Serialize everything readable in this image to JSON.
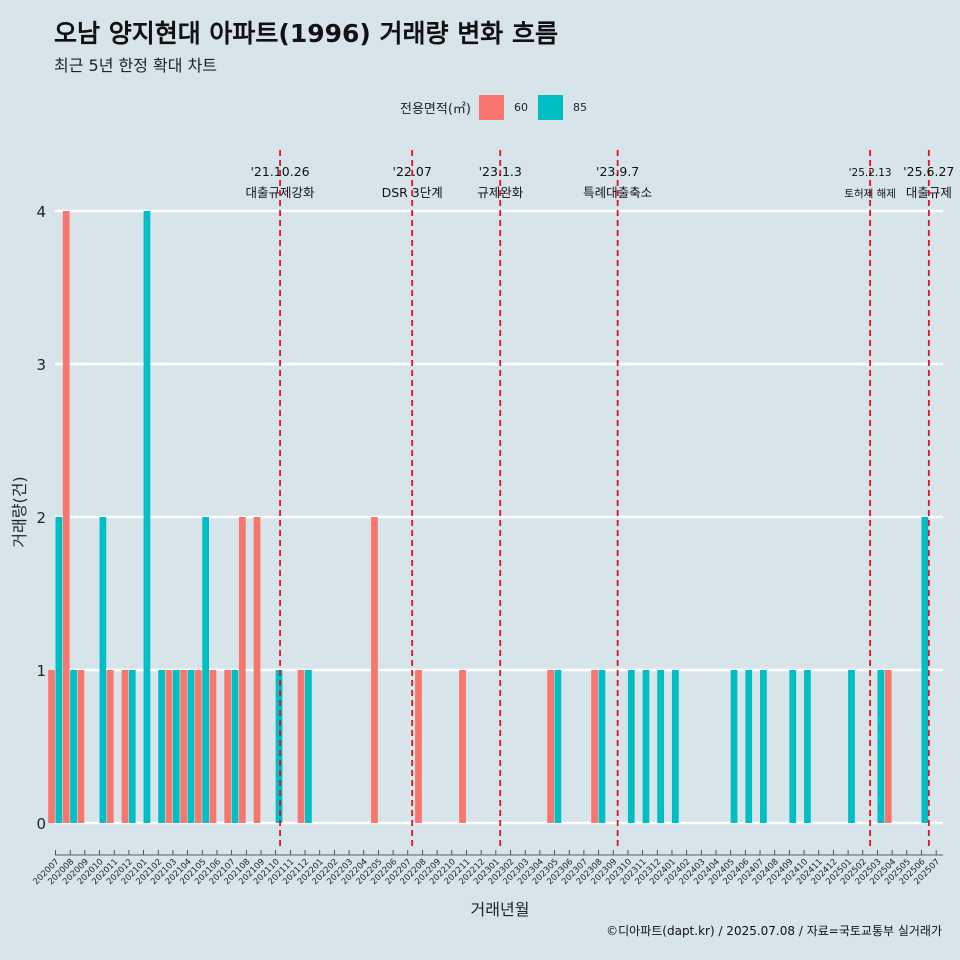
{
  "chart_data": {
    "type": "bar",
    "title": "오남 양지현대 아파트(1996) 거래량 변화 흐름",
    "subtitle": "최근 5년 한정 확대 차트",
    "xlabel": "거래년월",
    "ylabel": "거래량(건)",
    "caption": "©디아파트(dapt.kr) / 2025.07.08 / 자료=국토교통부 실거래가",
    "legend": {
      "title": "전용면적(㎡)",
      "position": "top",
      "items": [
        {
          "label": "60",
          "color": "#f8766d"
        },
        {
          "label": "85",
          "color": "#00bfc4"
        }
      ]
    },
    "ylim": [
      0,
      4
    ],
    "y_ticks": [
      "0",
      "1",
      "2",
      "3",
      "4"
    ],
    "grid": true,
    "categories": [
      "202007",
      "202008",
      "202009",
      "202010",
      "202011",
      "202012",
      "202101",
      "202102",
      "202103",
      "202104",
      "202105",
      "202106",
      "202107",
      "202108",
      "202109",
      "202110",
      "202111",
      "202112",
      "202201",
      "202202",
      "202203",
      "202204",
      "202205",
      "202206",
      "202207",
      "202208",
      "202209",
      "202210",
      "202211",
      "202212",
      "202301",
      "202302",
      "202303",
      "202304",
      "202305",
      "202306",
      "202307",
      "202308",
      "202309",
      "202310",
      "202311",
      "202312",
      "202401",
      "202402",
      "202403",
      "202404",
      "202405",
      "202406",
      "202407",
      "202408",
      "202409",
      "202410",
      "202411",
      "202412",
      "202501",
      "202502",
      "202503",
      "202504",
      "202505",
      "202506",
      "202507"
    ],
    "series": [
      {
        "name": "60",
        "color": "#f8766d",
        "values": [
          1,
          4,
          1,
          0,
          1,
          1,
          0,
          0,
          1,
          1,
          1,
          1,
          1,
          2,
          2,
          0,
          0,
          1,
          0,
          0,
          0,
          0,
          2,
          0,
          0,
          1,
          0,
          0,
          1,
          0,
          0,
          0,
          0,
          0,
          1,
          0,
          0,
          1,
          0,
          0,
          0,
          0,
          0,
          0,
          0,
          0,
          0,
          0,
          0,
          0,
          0,
          0,
          0,
          0,
          0,
          0,
          0,
          1,
          0,
          0,
          0
        ]
      },
      {
        "name": "85",
        "color": "#00bfc4",
        "values": [
          2,
          1,
          0,
          2,
          0,
          1,
          4,
          1,
          1,
          1,
          2,
          0,
          1,
          0,
          0,
          1,
          0,
          1,
          0,
          0,
          0,
          0,
          0,
          0,
          0,
          0,
          0,
          0,
          0,
          0,
          0,
          0,
          0,
          0,
          1,
          0,
          0,
          1,
          0,
          1,
          1,
          1,
          1,
          0,
          0,
          0,
          1,
          1,
          1,
          0,
          1,
          1,
          0,
          0,
          1,
          0,
          1,
          0,
          0,
          2,
          0
        ]
      }
    ],
    "events": [
      {
        "date": "'21.10.26",
        "label": "대출규제강화",
        "x": 15.3,
        "size": "normal"
      },
      {
        "date": "'22.07",
        "label": "DSR 3단계",
        "x": 24.3,
        "size": "normal"
      },
      {
        "date": "'23.1.3",
        "label": "규제완화",
        "x": 30.3,
        "size": "normal"
      },
      {
        "date": "'23.9.7",
        "label": "특례대출축소",
        "x": 38.3,
        "size": "normal"
      },
      {
        "date": "'25.2.13",
        "label": "토허제 해제",
        "x": 55.5,
        "size": "small"
      },
      {
        "date": "'25.6.27",
        "label": "대출규제",
        "x": 59.5,
        "size": "normal"
      }
    ]
  }
}
